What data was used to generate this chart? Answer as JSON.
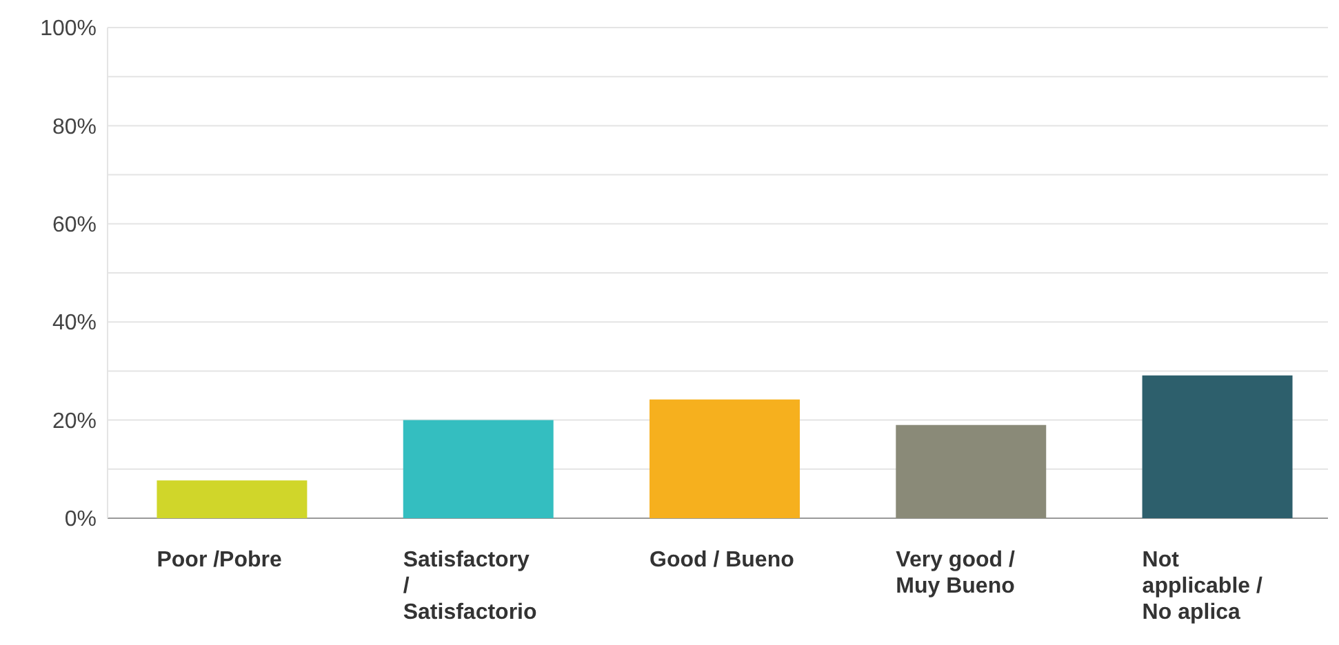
{
  "chart_data": {
    "type": "bar",
    "categories": [
      "Poor /Pobre",
      "Satisfactory / Satisfactorio",
      "Good / Bueno",
      "Very good / Muy Bueno",
      "Not applicable / No aplica"
    ],
    "values": [
      7.7,
      20.0,
      24.2,
      19.0,
      29.1
    ],
    "colors": [
      "#d0d62a",
      "#34bec0",
      "#f6b01e",
      "#8a8a78",
      "#2d5f6c"
    ],
    "ylim": [
      0,
      100
    ],
    "yticks": [
      {
        "value": 0,
        "label": "0%"
      },
      {
        "value": 10,
        "label": null
      },
      {
        "value": 20,
        "label": "20%"
      },
      {
        "value": 30,
        "label": null
      },
      {
        "value": 40,
        "label": "40%"
      },
      {
        "value": 50,
        "label": null
      },
      {
        "value": 60,
        "label": "60%"
      },
      {
        "value": 70,
        "label": null
      },
      {
        "value": 80,
        "label": "80%"
      },
      {
        "value": 90,
        "label": null
      },
      {
        "value": 100,
        "label": "100%"
      }
    ],
    "grid": "y"
  }
}
